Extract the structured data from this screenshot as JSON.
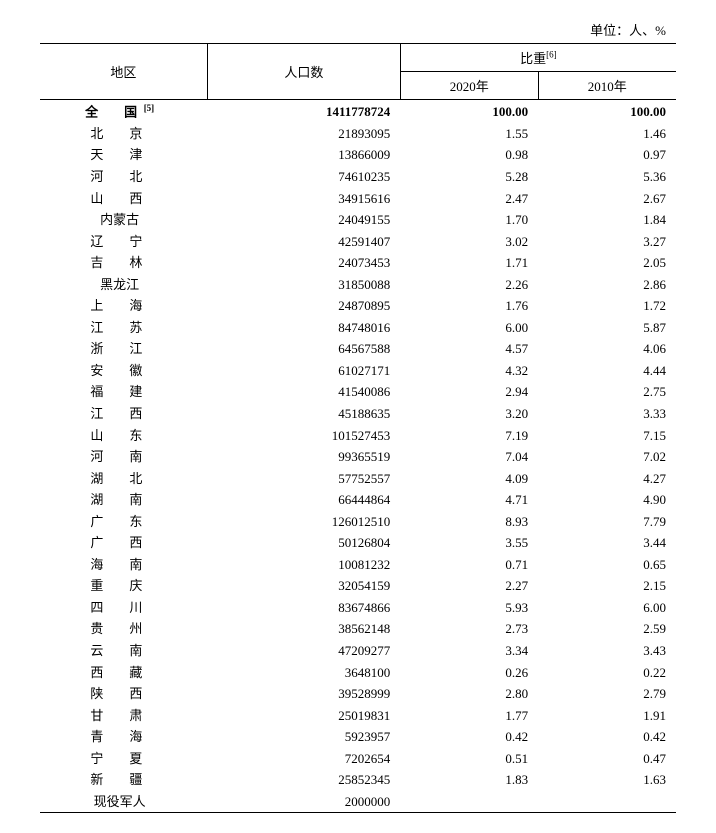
{
  "unit_label": "单位：人、%",
  "headers": {
    "region": "地区",
    "population": "人口数",
    "ratio_group": "比重",
    "ratio_sup": "[6]",
    "y2020": "2020年",
    "y2010": "2010年"
  },
  "total_row": {
    "region": "全　国",
    "region_sup": "[5]",
    "population": "1411778724",
    "y2020": "100.00",
    "y2010": "100.00"
  },
  "rows": [
    {
      "region": "北　京",
      "population": "21893095",
      "y2020": "1.55",
      "y2010": "1.46"
    },
    {
      "region": "天　津",
      "population": "13866009",
      "y2020": "0.98",
      "y2010": "0.97"
    },
    {
      "region": "河　北",
      "population": "74610235",
      "y2020": "5.28",
      "y2010": "5.36"
    },
    {
      "region": "山　西",
      "population": "34915616",
      "y2020": "2.47",
      "y2010": "2.67"
    },
    {
      "region": "内蒙古",
      "population": "24049155",
      "y2020": "1.70",
      "y2010": "1.84",
      "tight": true
    },
    {
      "region": "辽　宁",
      "population": "42591407",
      "y2020": "3.02",
      "y2010": "3.27"
    },
    {
      "region": "吉　林",
      "population": "24073453",
      "y2020": "1.71",
      "y2010": "2.05"
    },
    {
      "region": "黑龙江",
      "population": "31850088",
      "y2020": "2.26",
      "y2010": "2.86",
      "tight": true
    },
    {
      "region": "上　海",
      "population": "24870895",
      "y2020": "1.76",
      "y2010": "1.72"
    },
    {
      "region": "江　苏",
      "population": "84748016",
      "y2020": "6.00",
      "y2010": "5.87"
    },
    {
      "region": "浙　江",
      "population": "64567588",
      "y2020": "4.57",
      "y2010": "4.06"
    },
    {
      "region": "安　徽",
      "population": "61027171",
      "y2020": "4.32",
      "y2010": "4.44"
    },
    {
      "region": "福　建",
      "population": "41540086",
      "y2020": "2.94",
      "y2010": "2.75"
    },
    {
      "region": "江　西",
      "population": "45188635",
      "y2020": "3.20",
      "y2010": "3.33"
    },
    {
      "region": "山　东",
      "population": "101527453",
      "y2020": "7.19",
      "y2010": "7.15"
    },
    {
      "region": "河　南",
      "population": "99365519",
      "y2020": "7.04",
      "y2010": "7.02"
    },
    {
      "region": "湖　北",
      "population": "57752557",
      "y2020": "4.09",
      "y2010": "4.27"
    },
    {
      "region": "湖　南",
      "population": "66444864",
      "y2020": "4.71",
      "y2010": "4.90"
    },
    {
      "region": "广　东",
      "population": "126012510",
      "y2020": "8.93",
      "y2010": "7.79"
    },
    {
      "region": "广　西",
      "population": "50126804",
      "y2020": "3.55",
      "y2010": "3.44"
    },
    {
      "region": "海　南",
      "population": "10081232",
      "y2020": "0.71",
      "y2010": "0.65"
    },
    {
      "region": "重　庆",
      "population": "32054159",
      "y2020": "2.27",
      "y2010": "2.15"
    },
    {
      "region": "四　川",
      "population": "83674866",
      "y2020": "5.93",
      "y2010": "6.00"
    },
    {
      "region": "贵　州",
      "population": "38562148",
      "y2020": "2.73",
      "y2010": "2.59"
    },
    {
      "region": "云　南",
      "population": "47209277",
      "y2020": "3.34",
      "y2010": "3.43"
    },
    {
      "region": "西　藏",
      "population": "3648100",
      "y2020": "0.26",
      "y2010": "0.22"
    },
    {
      "region": "陕　西",
      "population": "39528999",
      "y2020": "2.80",
      "y2010": "2.79"
    },
    {
      "region": "甘　肃",
      "population": "25019831",
      "y2020": "1.77",
      "y2010": "1.91"
    },
    {
      "region": "青　海",
      "population": "5923957",
      "y2020": "0.42",
      "y2010": "0.42"
    },
    {
      "region": "宁　夏",
      "population": "7202654",
      "y2020": "0.51",
      "y2010": "0.47"
    },
    {
      "region": "新　疆",
      "population": "25852345",
      "y2020": "1.83",
      "y2010": "1.63"
    },
    {
      "region": "现役军人",
      "population": "2000000",
      "y2020": "",
      "y2010": "",
      "tight": true
    }
  ],
  "style": {
    "font_family": "SimSun",
    "font_size_pt": 10,
    "border_color": "#000000",
    "background_color": "#ffffff",
    "columns": [
      "region",
      "population",
      "y2020",
      "y2010"
    ],
    "col_widths_pct": [
      26,
      30,
      22,
      22
    ],
    "align": {
      "region": "center",
      "population": "right",
      "y2020": "right",
      "y2010": "right"
    }
  }
}
